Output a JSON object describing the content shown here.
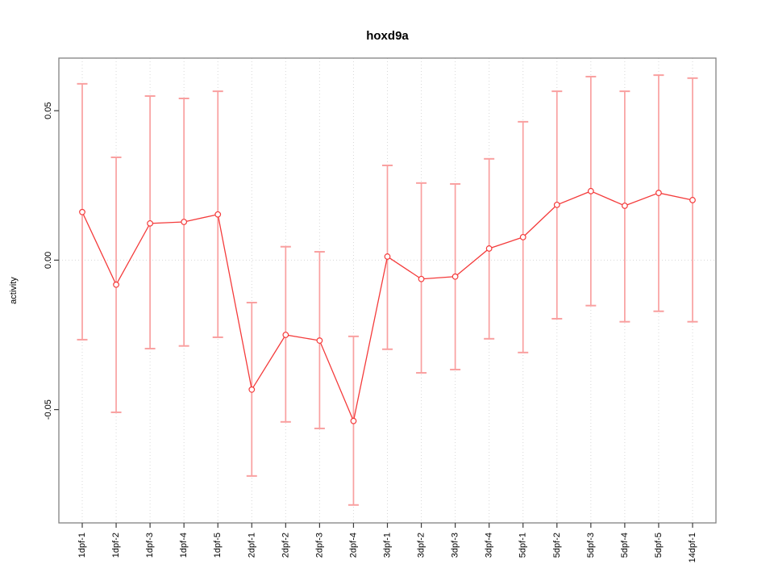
{
  "chart_data": {
    "type": "line",
    "title": "hoxd9a",
    "xlabel": "",
    "ylabel": "activity",
    "categories": [
      "1dpf-1",
      "1dpf-2",
      "1dpf-3",
      "1dpf-4",
      "1dpf-5",
      "2dpf-1",
      "2dpf-2",
      "2dpf-3",
      "2dpf-4",
      "3dpf-1",
      "3dpf-2",
      "3dpf-3",
      "3dpf-4",
      "5dpf-1",
      "5dpf-2",
      "5dpf-3",
      "5dpf-4",
      "5dpf-5",
      "14dpf-1"
    ],
    "series": [
      {
        "name": "activity",
        "values": [
          0.0161,
          -0.0082,
          0.0123,
          0.0128,
          0.0153,
          -0.0433,
          -0.025,
          -0.0269,
          -0.0538,
          0.0012,
          -0.0063,
          -0.0055,
          0.0039,
          0.0077,
          0.0185,
          0.0231,
          0.0182,
          0.0225,
          0.0201
        ],
        "error_upper": [
          0.059,
          0.0344,
          0.0549,
          0.0541,
          0.0565,
          -0.0142,
          0.0045,
          0.0028,
          -0.0255,
          0.0317,
          0.0258,
          0.0255,
          0.0339,
          0.0463,
          0.0565,
          0.0614,
          0.0565,
          0.0619,
          0.0609
        ],
        "error_lower": [
          -0.0266,
          -0.0509,
          -0.0296,
          -0.0287,
          -0.0258,
          -0.0722,
          -0.0541,
          -0.0563,
          -0.0819,
          -0.0298,
          -0.0377,
          -0.0366,
          -0.0263,
          -0.0309,
          -0.0196,
          -0.0152,
          -0.0206,
          -0.0171,
          -0.0206
        ]
      }
    ],
    "ylim": [
      -0.0879,
      0.0676
    ],
    "yticks": [
      -0.05,
      0.0,
      0.05
    ],
    "ytick_labels": [
      "-0.05",
      "0.00",
      "0.05"
    ],
    "grid": {
      "vertical": "dotted line at every category tick",
      "horizontal": "dotted line at y=0 only",
      "style": "dotted"
    },
    "legend": "none",
    "marker": "open-circle",
    "colors": {
      "line": "#f43b3b",
      "point": "#f43b3b",
      "point_fill": "#ffffff",
      "errorbar": "#f9a0a0",
      "grid": "#d8d8d8",
      "frame": "#828282",
      "tick": "#3c3c3c",
      "text": "#000000",
      "background": "#ffffff"
    }
  }
}
